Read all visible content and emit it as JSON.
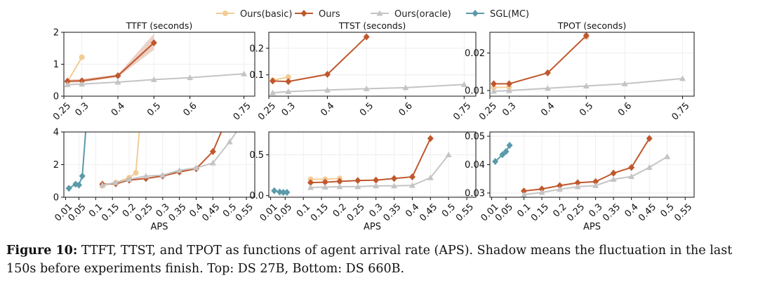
{
  "legend": {
    "items": [
      {
        "label": "Ours(basic)",
        "color": "#f2cc96",
        "marker": "circle"
      },
      {
        "label": "Ours",
        "color": "#c0582d",
        "marker": "diamond"
      },
      {
        "label": "Ours(oracle)",
        "color": "#c4c4c4",
        "marker": "triangle"
      },
      {
        "label": "SGL(MC)",
        "color": "#5a9aaa",
        "marker": "diamond"
      }
    ]
  },
  "caption": {
    "label": "Figure 10:",
    "text": "TTFT, TTST, and TPOT as functions of agent arrival rate (APS). Shadow means the fluctuation in the last 150s before experiments finish. Top: DS 27B, Bottom: DS 660B."
  },
  "chart_data": [
    {
      "type": "line",
      "title": "TTFT (seconds)",
      "xlabel": "",
      "ylabel": "",
      "xlim": [
        0.25,
        0.78
      ],
      "ylim": [
        0,
        2
      ],
      "xticks": [
        "0.25",
        "0.3",
        "0.4",
        "0.5",
        "0.6",
        "0.75"
      ],
      "xtick_values": [
        0.25,
        0.3,
        0.4,
        0.5,
        0.6,
        0.75
      ],
      "yticks": [
        "0",
        "1",
        "2"
      ],
      "ytick_values": [
        0,
        1,
        2
      ],
      "series": [
        {
          "name": "Ours(basic)",
          "x": [
            0.26,
            0.3
          ],
          "y": [
            0.45,
            1.22
          ]
        },
        {
          "name": "Ours",
          "x": [
            0.26,
            0.3,
            0.4,
            0.5
          ],
          "y": [
            0.47,
            0.48,
            0.64,
            1.67
          ],
          "band": [
            [
              0.26,
              0.42,
              0.52
            ],
            [
              0.3,
              0.43,
              0.54
            ],
            [
              0.4,
              0.6,
              0.68
            ],
            [
              0.5,
              1.45,
              1.95
            ]
          ]
        },
        {
          "name": "Ours(oracle)",
          "x": [
            0.26,
            0.3,
            0.4,
            0.5,
            0.6,
            0.75
          ],
          "y": [
            0.36,
            0.38,
            0.44,
            0.52,
            0.58,
            0.7
          ]
        }
      ]
    },
    {
      "type": "line",
      "title": "TTST (seconds)",
      "xlabel": "",
      "ylabel": "",
      "xlim": [
        0.25,
        0.78
      ],
      "ylim": [
        0.02,
        0.26
      ],
      "xticks": [
        "0.25",
        "0.3",
        "0.4",
        "0.5",
        "0.6",
        "0.75"
      ],
      "xtick_values": [
        0.25,
        0.3,
        0.4,
        0.5,
        0.6,
        0.75
      ],
      "yticks": [
        "0.1",
        "0.2"
      ],
      "ytick_values": [
        0.1,
        0.2
      ],
      "series": [
        {
          "name": "Ours(basic)",
          "x": [
            0.26,
            0.3
          ],
          "y": [
            0.08,
            0.092
          ]
        },
        {
          "name": "Ours",
          "x": [
            0.26,
            0.3,
            0.4,
            0.5
          ],
          "y": [
            0.077,
            0.075,
            0.102,
            0.243
          ]
        },
        {
          "name": "Ours(oracle)",
          "x": [
            0.26,
            0.3,
            0.4,
            0.5,
            0.6,
            0.75
          ],
          "y": [
            0.033,
            0.037,
            0.043,
            0.048,
            0.052,
            0.064
          ]
        }
      ]
    },
    {
      "type": "line",
      "title": "TPOT (seconds)",
      "xlabel": "",
      "ylabel": "",
      "xlim": [
        0.25,
        0.78
      ],
      "ylim": [
        0.0085,
        0.0255
      ],
      "xticks": [
        "0.25",
        "0.3",
        "0.4",
        "0.5",
        "0.6",
        "0.75"
      ],
      "xtick_values": [
        0.25,
        0.3,
        0.4,
        0.5,
        0.6,
        0.75
      ],
      "yticks": [
        "0.01",
        "0.02"
      ],
      "ytick_values": [
        0.01,
        0.02
      ],
      "series": [
        {
          "name": "Ours(basic)",
          "x": [
            0.26,
            0.3
          ],
          "y": [
            0.0108,
            0.0109
          ]
        },
        {
          "name": "Ours",
          "x": [
            0.26,
            0.3,
            0.4,
            0.5
          ],
          "y": [
            0.0118,
            0.0118,
            0.0147,
            0.0246
          ],
          "band": [
            [
              0.5,
              0.0236,
              0.0252
            ]
          ]
        },
        {
          "name": "Ours(oracle)",
          "x": [
            0.26,
            0.3,
            0.4,
            0.5,
            0.6,
            0.75
          ],
          "y": [
            0.0098,
            0.01,
            0.0106,
            0.0112,
            0.0118,
            0.0132
          ]
        }
      ]
    },
    {
      "type": "line",
      "title": "",
      "xlabel": "APS",
      "ylabel": "",
      "xlim": [
        0.005,
        0.575
      ],
      "ylim": [
        0,
        4
      ],
      "xticks": [
        "0.01",
        "0.05",
        "0.1",
        "0.15",
        "0.2",
        "0.25",
        "0.3",
        "0.35",
        "0.4",
        "0.45",
        "0.5",
        "0.55"
      ],
      "xtick_values": [
        0.01,
        0.05,
        0.1,
        0.15,
        0.2,
        0.25,
        0.3,
        0.35,
        0.4,
        0.45,
        0.5,
        0.55
      ],
      "yticks": [
        "0",
        "2",
        "4"
      ],
      "ytick_values": [
        0,
        2,
        4
      ],
      "series": [
        {
          "name": "Ours(basic)",
          "x": [
            0.12,
            0.16,
            0.2,
            0.22,
            0.23
          ],
          "y": [
            0.7,
            0.9,
            1.2,
            1.5,
            4.0
          ]
        },
        {
          "name": "Ours",
          "x": [
            0.12,
            0.16,
            0.2,
            0.25,
            0.3,
            0.35,
            0.4,
            0.45,
            0.475
          ],
          "y": [
            0.8,
            0.83,
            1.05,
            1.15,
            1.3,
            1.55,
            1.75,
            2.8,
            4.0
          ]
        },
        {
          "name": "Ours(oracle)",
          "x": [
            0.12,
            0.16,
            0.2,
            0.25,
            0.3,
            0.35,
            0.4,
            0.45,
            0.5,
            0.52
          ],
          "y": [
            0.75,
            0.9,
            1.1,
            1.3,
            1.35,
            1.65,
            1.8,
            2.1,
            3.4,
            4.0
          ]
        },
        {
          "name": "SGL(MC)",
          "x": [
            0.02,
            0.04,
            0.05,
            0.06,
            0.07
          ],
          "y": [
            0.55,
            0.8,
            0.75,
            1.3,
            4.0
          ]
        }
      ]
    },
    {
      "type": "line",
      "title": "",
      "xlabel": "APS",
      "ylabel": "",
      "xlim": [
        0.005,
        0.575
      ],
      "ylim": [
        -0.02,
        0.78
      ],
      "xticks": [
        "0.01",
        "0.05",
        "0.1",
        "0.15",
        "0.2",
        "0.25",
        "0.3",
        "0.35",
        "0.4",
        "0.45",
        "0.5",
        "0.55"
      ],
      "xtick_values": [
        0.01,
        0.05,
        0.1,
        0.15,
        0.2,
        0.25,
        0.3,
        0.35,
        0.4,
        0.45,
        0.5,
        0.55
      ],
      "yticks": [
        "0.0",
        "0.5"
      ],
      "ytick_values": [
        0,
        0.5
      ],
      "series": [
        {
          "name": "Ours(basic)",
          "x": [
            0.12,
            0.16,
            0.2
          ],
          "y": [
            0.2,
            0.2,
            0.21
          ]
        },
        {
          "name": "Ours",
          "x": [
            0.12,
            0.16,
            0.2,
            0.25,
            0.3,
            0.35,
            0.4,
            0.45
          ],
          "y": [
            0.16,
            0.165,
            0.175,
            0.185,
            0.19,
            0.21,
            0.23,
            0.7
          ]
        },
        {
          "name": "Ours(oracle)",
          "x": [
            0.12,
            0.16,
            0.2,
            0.25,
            0.3,
            0.35,
            0.4,
            0.45,
            0.5
          ],
          "y": [
            0.1,
            0.105,
            0.11,
            0.11,
            0.12,
            0.12,
            0.125,
            0.22,
            0.5
          ]
        },
        {
          "name": "SGL(MC)",
          "x": [
            0.02,
            0.035,
            0.045,
            0.055
          ],
          "y": [
            0.06,
            0.045,
            0.04,
            0.04
          ]
        }
      ]
    },
    {
      "type": "line",
      "title": "",
      "xlabel": "APS",
      "ylabel": "",
      "xlim": [
        0.005,
        0.575
      ],
      "ylim": [
        0.0285,
        0.0515
      ],
      "xticks": [
        "0.01",
        "0.05",
        "0.1",
        "0.15",
        "0.2",
        "0.25",
        "0.3",
        "0.35",
        "0.4",
        "0.45",
        "0.5",
        "0.55"
      ],
      "xtick_values": [
        0.01,
        0.05,
        0.1,
        0.15,
        0.2,
        0.25,
        0.3,
        0.35,
        0.4,
        0.45,
        0.5,
        0.55
      ],
      "yticks": [
        "0.03",
        "0.04",
        "0.05"
      ],
      "ytick_values": [
        0.03,
        0.04,
        0.05
      ],
      "series": [
        {
          "name": "Ours",
          "x": [
            0.1,
            0.15,
            0.2,
            0.25,
            0.3,
            0.35,
            0.4,
            0.45
          ],
          "y": [
            0.0307,
            0.0314,
            0.0326,
            0.0336,
            0.034,
            0.037,
            0.039,
            0.0492
          ]
        },
        {
          "name": "Ours(oracle)",
          "x": [
            0.1,
            0.15,
            0.2,
            0.25,
            0.3,
            0.35,
            0.4,
            0.45,
            0.5
          ],
          "y": [
            0.0294,
            0.0302,
            0.0313,
            0.0322,
            0.0326,
            0.0348,
            0.0358,
            0.039,
            0.0428
          ]
        },
        {
          "name": "SGL(MC)",
          "x": [
            0.02,
            0.04,
            0.05,
            0.06
          ],
          "y": [
            0.0411,
            0.0435,
            0.0446,
            0.0468
          ]
        }
      ]
    }
  ]
}
